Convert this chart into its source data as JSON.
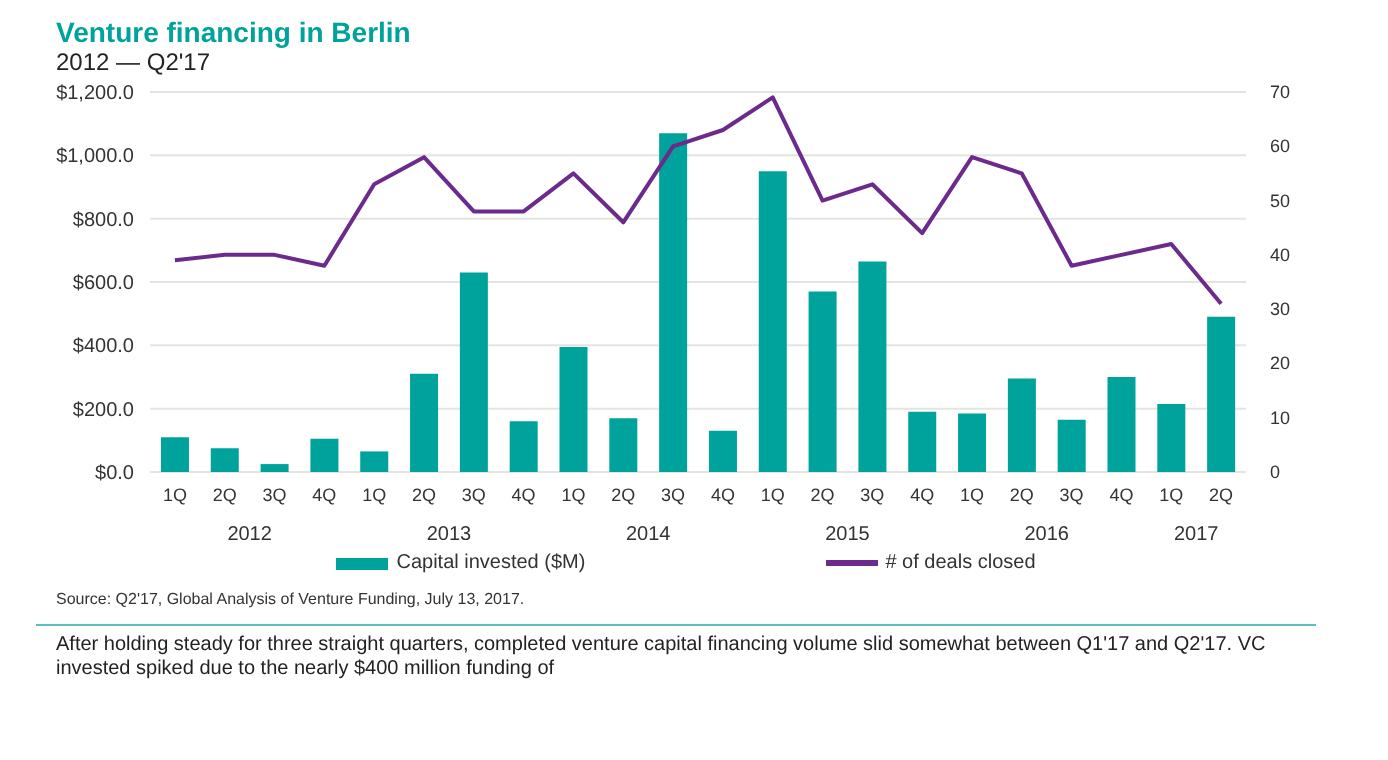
{
  "chart_data": {
    "type": "bar",
    "title": "Venture financing in Berlin",
    "subtitle": "2012 — Q2'17",
    "categories": [
      "1Q",
      "2Q",
      "3Q",
      "4Q",
      "1Q",
      "2Q",
      "3Q",
      "4Q",
      "1Q",
      "2Q",
      "3Q",
      "4Q",
      "1Q",
      "2Q",
      "3Q",
      "4Q",
      "1Q",
      "2Q",
      "3Q",
      "4Q",
      "1Q",
      "2Q"
    ],
    "series": [
      {
        "name": "Capital invested ($M)",
        "color": "#00a39b",
        "values": [
          110,
          75,
          25,
          105,
          65,
          310,
          630,
          160,
          395,
          170,
          1070,
          130,
          950,
          570,
          665,
          190,
          185,
          295,
          165,
          300,
          215,
          490
        ]
      },
      {
        "name": "# of deals closed",
        "type": "line",
        "axis": "y2",
        "color": "#6c2a8c",
        "marker": "none",
        "values": [
          39,
          40,
          40,
          38,
          53,
          58,
          48,
          48,
          55,
          46,
          60,
          63,
          69,
          50,
          53,
          44,
          58,
          55,
          38,
          40,
          42,
          31
        ]
      }
    ],
    "ylim": [
      0,
      1200
    ],
    "yticks": [
      {
        "value": 0,
        "label": "$0.0"
      },
      {
        "value": 200,
        "label": "$200.0"
      },
      {
        "value": 400,
        "label": "$400.0"
      },
      {
        "value": 600,
        "label": "$600.0"
      },
      {
        "value": 800,
        "label": "$800.0"
      },
      {
        "value": 1000,
        "label": "$1,000.0"
      },
      {
        "value": 1200,
        "label": "$1,200.0"
      }
    ],
    "y2lim": [
      0,
      70
    ],
    "y2ticks": [
      0,
      10,
      20,
      30,
      40,
      50,
      60,
      70
    ],
    "grid": "y",
    "legend": "bottom",
    "annotations": [
      "2012",
      "2013",
      "2014",
      "2015",
      "2016",
      "2017",
      "Source: Q2'17, Global Analysis of Venture Funding, July 13, 2017.",
      "After holding steady for three straight quarters, completed venture capital financing volume slid somewhat between Q1'17 and Q2'17. VC invested spiked due to the nearly $400 million funding of"
    ]
  }
}
